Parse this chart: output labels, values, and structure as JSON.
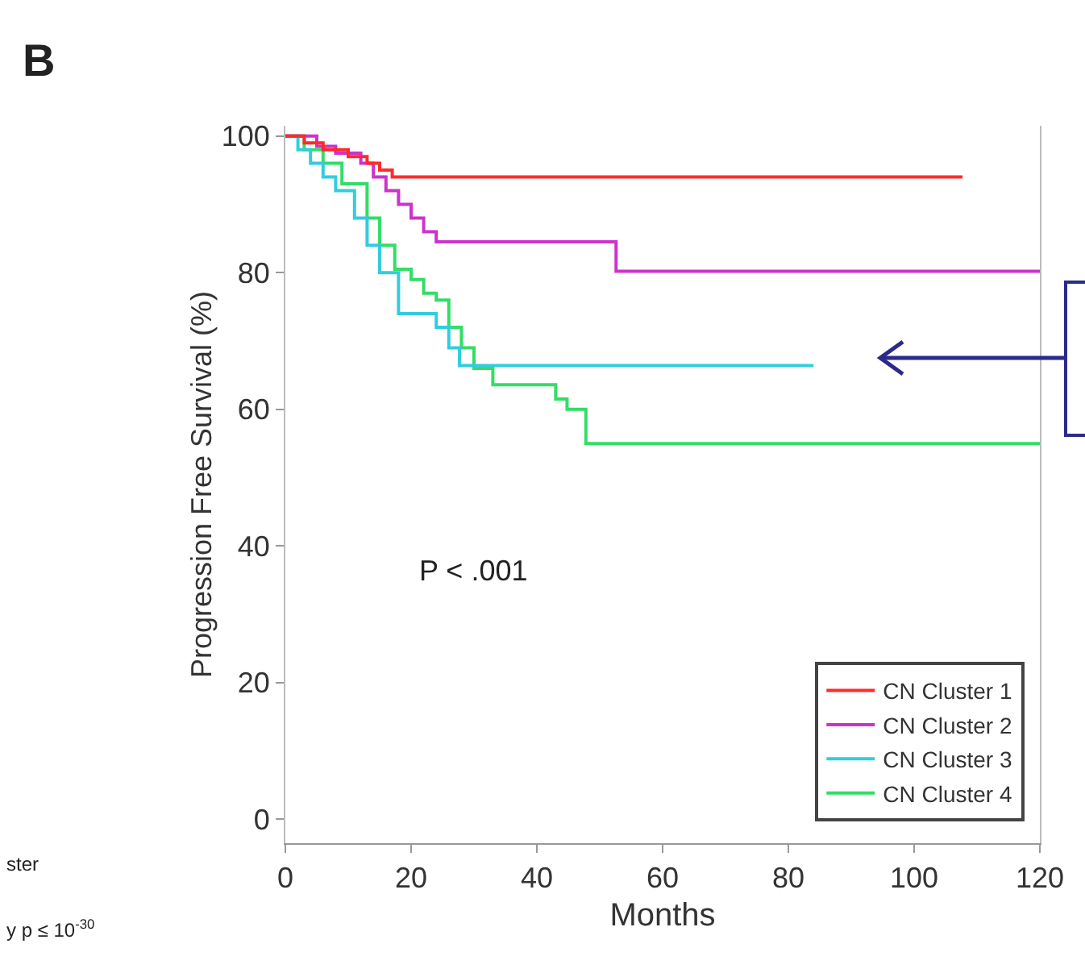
{
  "chart_data": {
    "type": "step",
    "xlabel": "Months",
    "ylabel": "Progression Free Survival (%)",
    "annotations": [
      "B",
      "P < .001",
      "ster",
      "y p ≤ 10$^{-30}$"
    ],
    "xlim": [
      0,
      120
    ],
    "xticks": [
      0,
      20,
      40,
      60,
      80,
      100,
      120
    ],
    "ylim": [
      -3.5,
      101.5
    ],
    "yticks": [
      0,
      20,
      40,
      60,
      80,
      100
    ],
    "grid": false,
    "legend": "bottom right",
    "marker": "none",
    "line_style": "solid",
    "series": [
      {
        "name": "CN Cluster 1",
        "color": "#ff2a2a",
        "x": [
          0,
          3,
          6,
          10,
          13,
          15,
          17,
          107.7
        ],
        "values": [
          100,
          99,
          98,
          97,
          96,
          95,
          94,
          94
        ]
      },
      {
        "name": "CN Cluster 2",
        "color": "#cc33cc",
        "x": [
          0,
          5,
          8,
          12,
          14,
          16,
          18,
          20,
          22,
          24,
          52.6,
          120
        ],
        "values": [
          100,
          98.5,
          97.5,
          96,
          94,
          92,
          90,
          88,
          86,
          84.5,
          80.2,
          80.2
        ]
      },
      {
        "name": "CN Cluster 3",
        "color": "#33ccdd",
        "x": [
          0,
          2,
          4,
          6,
          8,
          11,
          13,
          15,
          18,
          24,
          26,
          27.7,
          84
        ],
        "values": [
          100,
          98,
          96,
          94,
          92,
          88,
          84,
          80,
          74,
          72,
          69,
          66.4,
          66.4
        ]
      },
      {
        "name": "CN Cluster 4",
        "color": "#33dd66",
        "x": [
          0,
          3,
          6,
          9,
          13,
          15,
          17.4,
          20,
          22,
          24,
          26,
          28,
          30,
          33,
          43,
          44.8,
          47.8,
          120
        ],
        "values": [
          100,
          98,
          96,
          93,
          88,
          84,
          80.5,
          79,
          77,
          76,
          72,
          69,
          66,
          63.6,
          61.5,
          60,
          55,
          55
        ]
      }
    ]
  }
}
